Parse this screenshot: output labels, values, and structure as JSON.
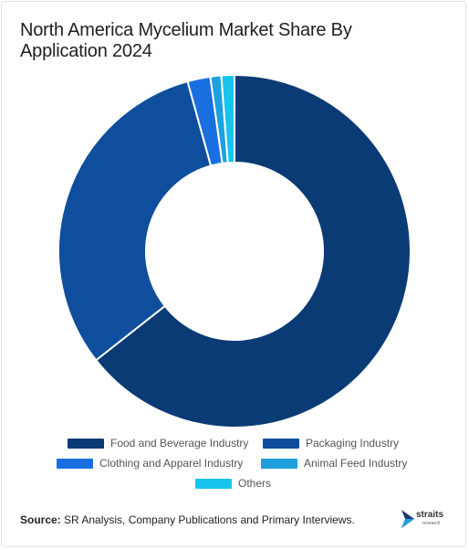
{
  "title": "North America Mycelium Market Share By Application 2024",
  "source_label": "Source:",
  "source_text": " SR Analysis, Company Publications and Primary Interviews.",
  "logo": {
    "name": "straits",
    "sub": "research"
  },
  "chart_data": {
    "type": "pie",
    "variant": "donut",
    "title": "North America Mycelium Market Share By Application 2024",
    "categories": [
      "Food and Beverage Industry",
      "Packaging Industry",
      "Clothing and Apparel Industry",
      "Animal Feed Industry",
      "Others"
    ],
    "values": [
      64.4,
      31.3,
      2.1,
      1.0,
      1.2
    ],
    "colors": [
      "#0b3b74",
      "#0e4e9c",
      "#1a6fe0",
      "#1ea0dc",
      "#17c4ec"
    ],
    "legend_position": "bottom"
  }
}
